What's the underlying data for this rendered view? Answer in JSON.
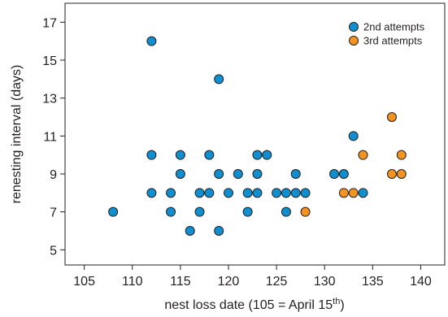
{
  "chart_data": {
    "type": "scatter",
    "title": "",
    "xlabel": "nest loss date (105 = April 15",
    "xlabel_sup": "th",
    "xlabel_end": ")",
    "ylabel": "renesting interval (days)",
    "xlim": [
      103,
      142.5
    ],
    "ylim": [
      4.2,
      18
    ],
    "xticks": [
      105,
      110,
      115,
      120,
      125,
      130,
      135,
      140
    ],
    "yticks": [
      5,
      7,
      9,
      11,
      13,
      15,
      17
    ],
    "grid": false,
    "legend_position": "top-right",
    "series": [
      {
        "name": "2nd attempts",
        "color": "#0f8fcf",
        "points": [
          [
            108,
            7
          ],
          [
            112,
            16
          ],
          [
            112,
            10
          ],
          [
            112,
            8
          ],
          [
            114,
            8
          ],
          [
            114,
            7
          ],
          [
            115,
            10
          ],
          [
            115,
            9
          ],
          [
            116,
            6
          ],
          [
            117,
            8
          ],
          [
            117,
            7
          ],
          [
            118,
            10
          ],
          [
            118,
            8
          ],
          [
            119,
            14
          ],
          [
            119,
            9
          ],
          [
            119,
            6
          ],
          [
            120,
            8
          ],
          [
            121,
            9
          ],
          [
            122,
            8
          ],
          [
            122,
            7
          ],
          [
            123,
            10
          ],
          [
            123,
            9
          ],
          [
            123,
            8
          ],
          [
            124,
            10
          ],
          [
            125,
            8
          ],
          [
            126,
            8
          ],
          [
            126,
            7
          ],
          [
            127,
            9
          ],
          [
            127,
            8
          ],
          [
            128,
            8
          ],
          [
            131,
            9
          ],
          [
            132,
            9
          ],
          [
            133,
            11
          ],
          [
            134,
            8
          ]
        ]
      },
      {
        "name": "3rd attempts",
        "color": "#f39320",
        "points": [
          [
            128,
            7
          ],
          [
            132,
            8
          ],
          [
            133,
            8
          ],
          [
            134,
            10
          ],
          [
            137,
            12
          ],
          [
            137,
            9
          ],
          [
            138,
            10
          ],
          [
            138,
            9
          ]
        ]
      }
    ]
  }
}
